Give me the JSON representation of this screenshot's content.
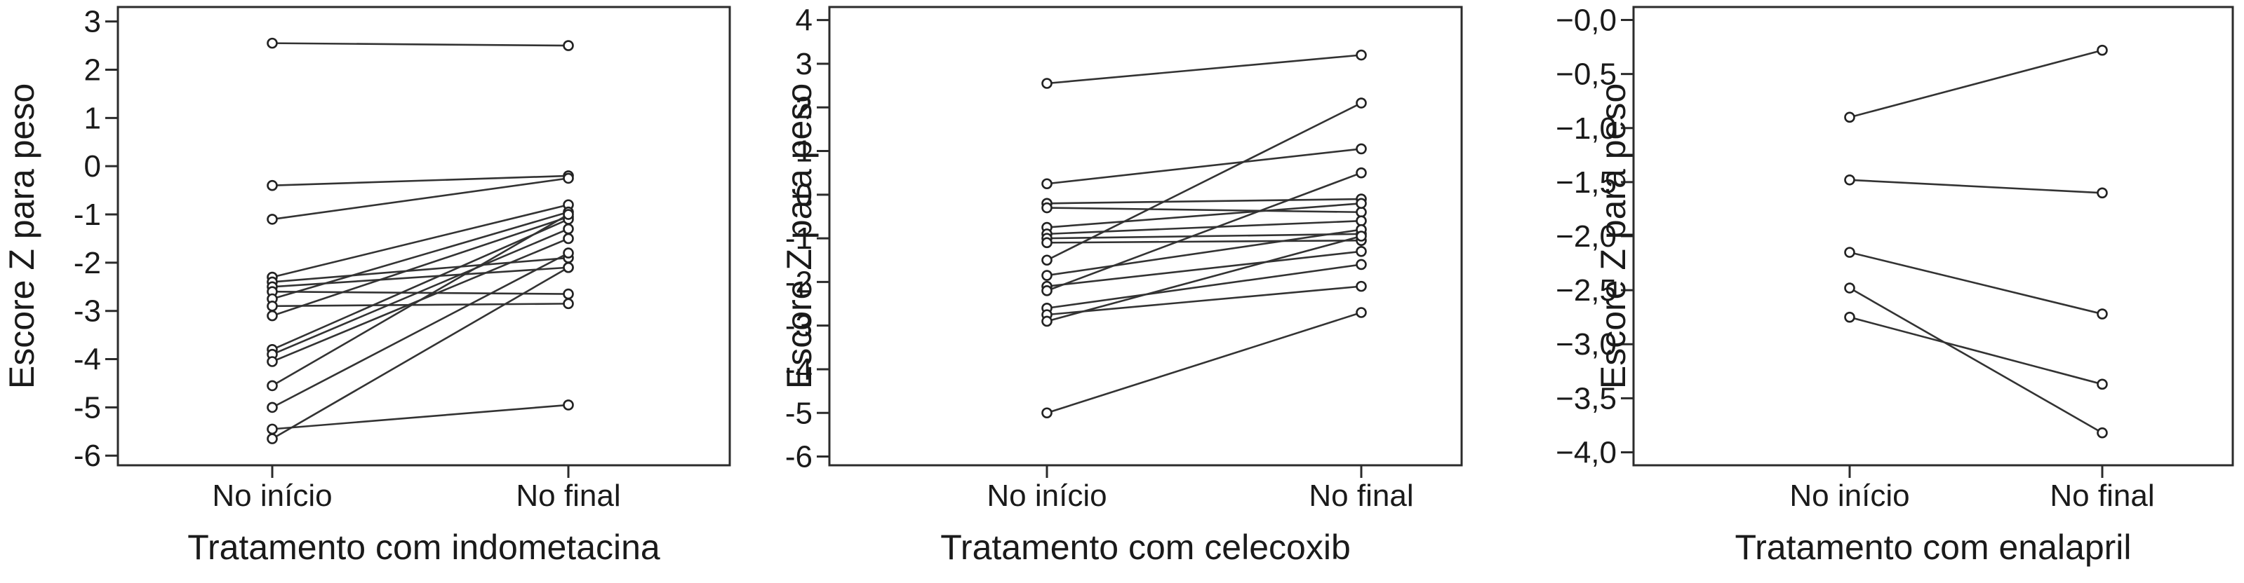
{
  "chart_data": [
    {
      "type": "line",
      "categories": [
        "No início",
        "No final"
      ],
      "xlabel": "Tratamento com indometacina",
      "ylabel": "Escore Z para peso",
      "ylim": [
        -6.2,
        3.3
      ],
      "yticks": [
        3,
        2,
        1,
        0,
        -1,
        -2,
        -3,
        -4,
        -5,
        -6
      ],
      "ytick_labels": [
        "3",
        "2",
        "1",
        "0",
        "-1",
        "-2",
        "-3",
        "-4",
        "-5",
        "-6"
      ],
      "grid": false,
      "legend": "none",
      "series": [
        {
          "values": [
            2.55,
            2.5
          ]
        },
        {
          "values": [
            -0.4,
            -0.2
          ]
        },
        {
          "values": [
            -1.1,
            -0.25
          ]
        },
        {
          "values": [
            -2.3,
            -0.8
          ]
        },
        {
          "values": [
            -2.4,
            -1.9
          ]
        },
        {
          "values": [
            -2.5,
            -2.1
          ]
        },
        {
          "values": [
            -2.6,
            -2.65
          ]
        },
        {
          "values": [
            -2.75,
            -0.95
          ]
        },
        {
          "values": [
            -2.9,
            -2.85
          ]
        },
        {
          "values": [
            -3.1,
            -1.05
          ]
        },
        {
          "values": [
            -3.8,
            -1.1
          ]
        },
        {
          "values": [
            -3.9,
            -1.3
          ]
        },
        {
          "values": [
            -4.05,
            -1.5
          ]
        },
        {
          "values": [
            -4.55,
            -1.0
          ]
        },
        {
          "values": [
            -5.0,
            -1.8
          ]
        },
        {
          "values": [
            -5.45,
            -4.95
          ]
        },
        {
          "values": [
            -5.65,
            -2.1
          ]
        }
      ]
    },
    {
      "type": "line",
      "categories": [
        "No início",
        "No final"
      ],
      "xlabel": "Tratamento com celecoxib",
      "ylabel": "Escore Z para peso",
      "ylim": [
        -6.2,
        4.3
      ],
      "yticks": [
        4,
        3,
        2,
        1,
        0,
        -1,
        -2,
        -3,
        -4,
        -5,
        -6
      ],
      "ytick_labels": [
        "4",
        "3",
        "2",
        "1",
        "0",
        "-1",
        "-2",
        "-3",
        "-4",
        "-5",
        "-6"
      ],
      "grid": false,
      "legend": "none",
      "series": [
        {
          "values": [
            2.55,
            3.2
          ]
        },
        {
          "values": [
            0.25,
            1.05
          ]
        },
        {
          "values": [
            -0.2,
            -0.1
          ]
        },
        {
          "values": [
            -0.3,
            -0.4
          ]
        },
        {
          "values": [
            -0.75,
            -0.2
          ]
        },
        {
          "values": [
            -0.9,
            -0.6
          ]
        },
        {
          "values": [
            -1.0,
            -0.9
          ]
        },
        {
          "values": [
            -1.1,
            -1.05
          ]
        },
        {
          "values": [
            -1.5,
            2.1
          ]
        },
        {
          "values": [
            -1.85,
            -0.8
          ]
        },
        {
          "values": [
            -2.1,
            -1.3
          ]
        },
        {
          "values": [
            -2.2,
            0.5
          ]
        },
        {
          "values": [
            -2.6,
            -1.6
          ]
        },
        {
          "values": [
            -2.75,
            -2.1
          ]
        },
        {
          "values": [
            -2.9,
            -0.95
          ]
        },
        {
          "values": [
            -5.0,
            -2.7
          ]
        }
      ]
    },
    {
      "type": "line",
      "categories": [
        "No início",
        "No final"
      ],
      "xlabel": "Tratamento com enalapril",
      "ylabel": "Escore Z para peso",
      "ylim": [
        -4.12,
        0.12
      ],
      "yticks": [
        0,
        -0.5,
        -1,
        -1.5,
        -2,
        -2.5,
        -3,
        -3.5,
        -4
      ],
      "ytick_labels": [
        "−0,0",
        "−0,5",
        "−1,0",
        "−1,5",
        "−2,0",
        "−2,5",
        "−3,0",
        "−3,5",
        "−4,0"
      ],
      "grid": false,
      "legend": "none",
      "series": [
        {
          "values": [
            -0.9,
            -0.28
          ]
        },
        {
          "values": [
            -1.48,
            -1.6
          ]
        },
        {
          "values": [
            -2.15,
            -2.72
          ]
        },
        {
          "values": [
            -2.48,
            -3.82
          ]
        },
        {
          "values": [
            -2.75,
            -3.37
          ]
        }
      ]
    }
  ]
}
